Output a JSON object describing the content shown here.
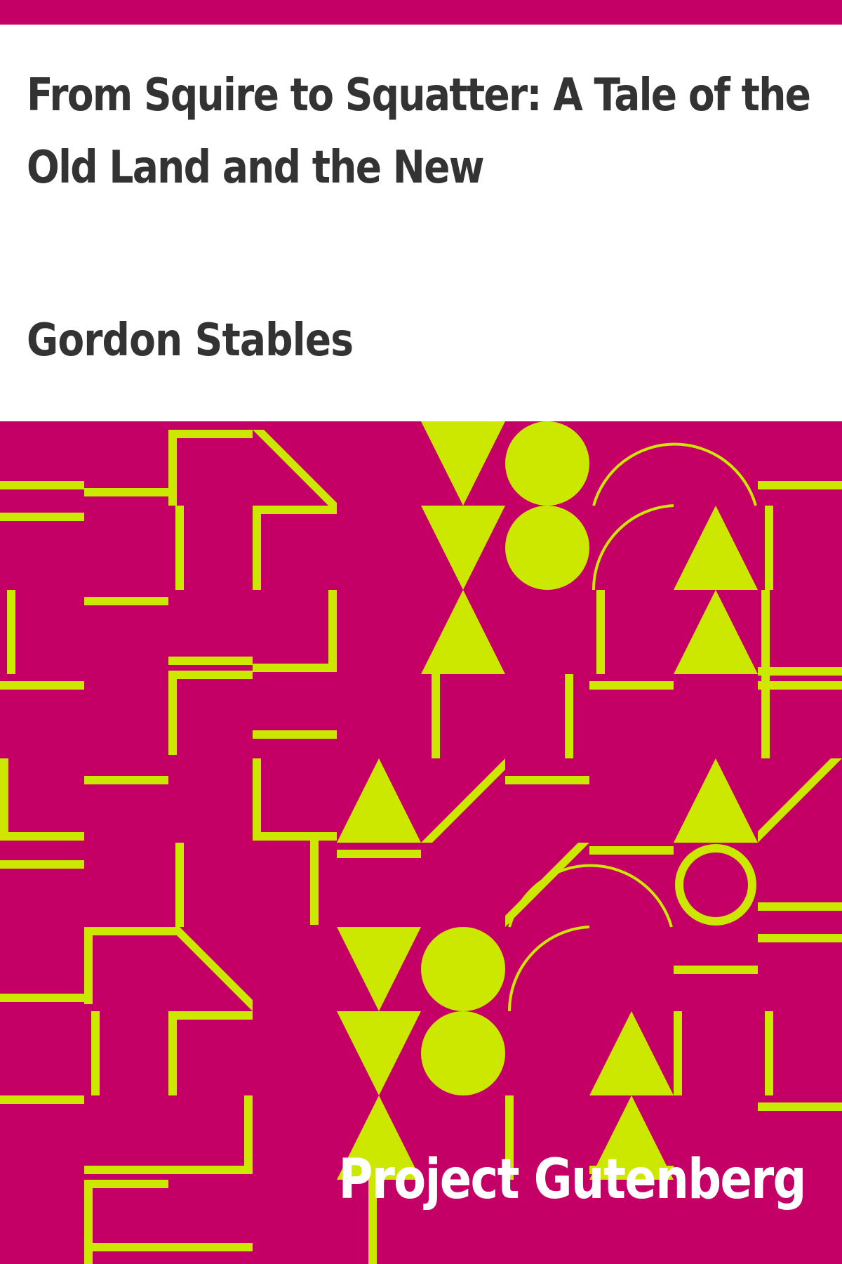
{
  "book": {
    "title": "From Squire to Squatter: A Tale of the Old Land and the New",
    "author": "Gordon Stables",
    "publisher": "Project Gutenberg"
  },
  "colors": {
    "background": "#c40066",
    "accent": "#cde800",
    "header_bg": "#ffffff",
    "text": "#333333",
    "publisher_text": "#ffffff"
  },
  "pattern": {
    "description_icon": "geometric-tile-pattern-icon"
  }
}
